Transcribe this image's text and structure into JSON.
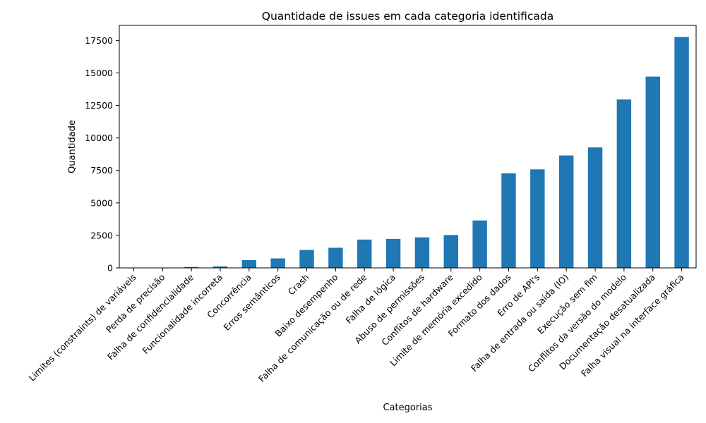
{
  "chart_data": {
    "type": "bar",
    "title": "Quantidade de issues em cada categoria identificada",
    "xlabel": "Categorias",
    "ylabel": "Quantidade",
    "ylim": [
      0,
      18660
    ],
    "yticks": [
      0,
      2500,
      5000,
      7500,
      10000,
      12500,
      15000,
      17500
    ],
    "grid": false,
    "bar_color": "#1f77b4",
    "categories": [
      "Limites (constraints) de variáveis",
      "Perda de precisão",
      "Falha de confidencialidade",
      "Funcionalidade incorreta",
      "Concorrência",
      "Erros semânticos",
      "Crash",
      "Baixo desempenho",
      "Falha de comunicação ou de rede",
      "Falha de lógica",
      "Abuso de permissões",
      "Conflitos de hardware",
      "Limite de memória excedido",
      "Formato dos dados",
      "Erro de API's",
      "Falha de entrada ou saída (IO)",
      "Execução sem fim",
      "Conflitos da versão do modelo",
      "Documentação desatualizada",
      "Falha visual na interface gráfica"
    ],
    "values": [
      5,
      20,
      70,
      120,
      600,
      730,
      1380,
      1550,
      2180,
      2230,
      2350,
      2530,
      3650,
      7280,
      7580,
      8650,
      9270,
      12960,
      14720,
      17770
    ]
  }
}
